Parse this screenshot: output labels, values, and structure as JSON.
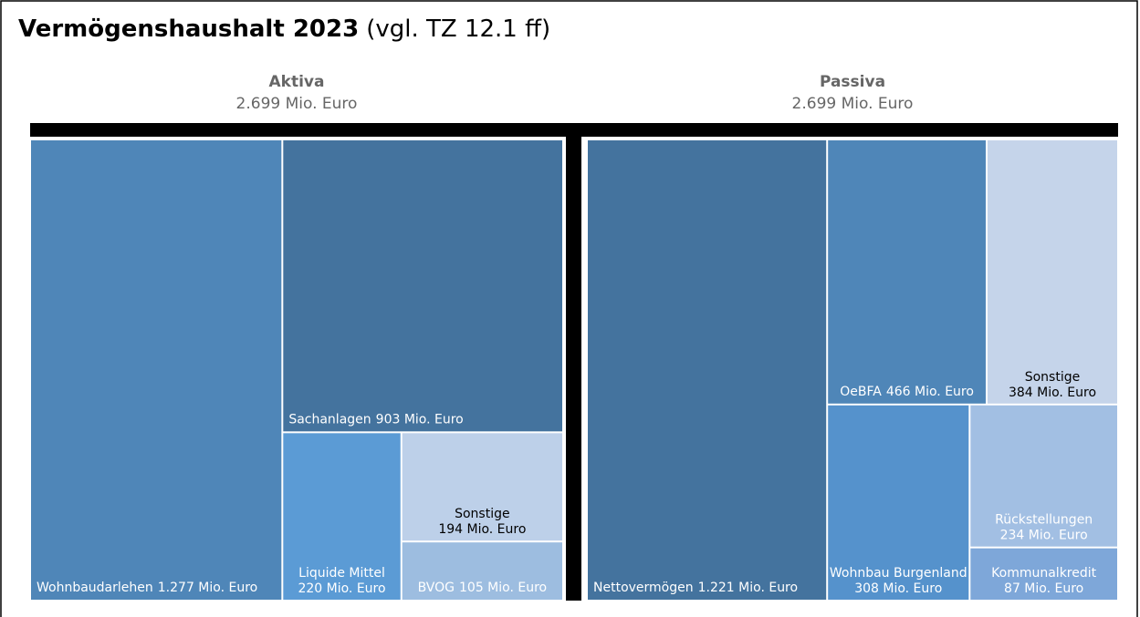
{
  "header": {
    "title": "Vermögenshaushalt 2023",
    "subtitle": "(vgl. TZ 12.1 ff)"
  },
  "chart_data": [
    {
      "type": "treemap",
      "title": "Aktiva",
      "total": "2.699 Mio. Euro",
      "items": [
        {
          "name": "Wohnbaudarlehen",
          "value": 1277,
          "value_label": "1.277 Mio. Euro",
          "color": "#4f86b8",
          "label_color": "#ffffff"
        },
        {
          "name": "Sachanlagen",
          "value": 903,
          "value_label": "903 Mio. Euro",
          "color": "#44739e",
          "label_color": "#ffffff"
        },
        {
          "name": "Liquide Mittel",
          "value": 220,
          "value_label": "220 Mio. Euro",
          "color": "#5b9bd5",
          "label_color": "#ffffff"
        },
        {
          "name": "Sonstige",
          "value": 194,
          "value_label": "194 Mio. Euro",
          "color": "#bdd0e9",
          "label_color": "#000000"
        },
        {
          "name": "BVOG",
          "value": 105,
          "value_label": "105 Mio. Euro",
          "color": "#9dbde0",
          "label_color": "#ffffff"
        }
      ]
    },
    {
      "type": "treemap",
      "title": "Passiva",
      "total": "2.699 Mio. Euro",
      "items": [
        {
          "name": "Nettovermögen",
          "value": 1221,
          "value_label": "1.221 Mio. Euro",
          "color": "#44739e",
          "label_color": "#ffffff"
        },
        {
          "name": "OeBFA",
          "value": 466,
          "value_label": "466 Mio. Euro",
          "color": "#4f86b8",
          "label_color": "#ffffff"
        },
        {
          "name": "Sonstige",
          "value": 384,
          "value_label": "384 Mio. Euro",
          "color": "#c5d4ea",
          "label_color": "#000000"
        },
        {
          "name": "Wohnbau Burgenland",
          "value": 308,
          "value_label": "308 Mio. Euro",
          "color": "#5592cc",
          "label_color": "#ffffff"
        },
        {
          "name": "Rückstellungen",
          "value": 234,
          "value_label": "234 Mio. Euro",
          "color": "#a2bfe3",
          "label_color": "#ffffff"
        },
        {
          "name": "Kommunalkredit",
          "value": 87,
          "value_label": "87 Mio. Euro",
          "color": "#7ea7d9",
          "label_color": "#ffffff"
        }
      ]
    }
  ]
}
